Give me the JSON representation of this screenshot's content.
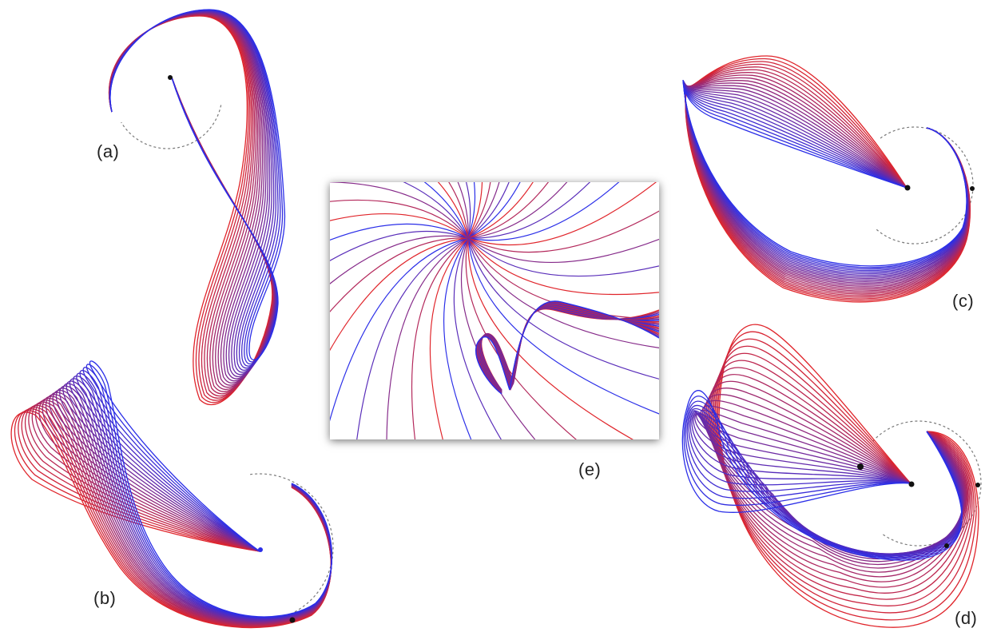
{
  "labels": {
    "a": "(a)",
    "b": "(b)",
    "c": "(c)",
    "d": "(d)",
    "e": "(e)"
  },
  "colors": {
    "start": "#e0242a",
    "end": "#2a2ee8",
    "ring": "#7a7a7a",
    "point": "#111111"
  }
}
